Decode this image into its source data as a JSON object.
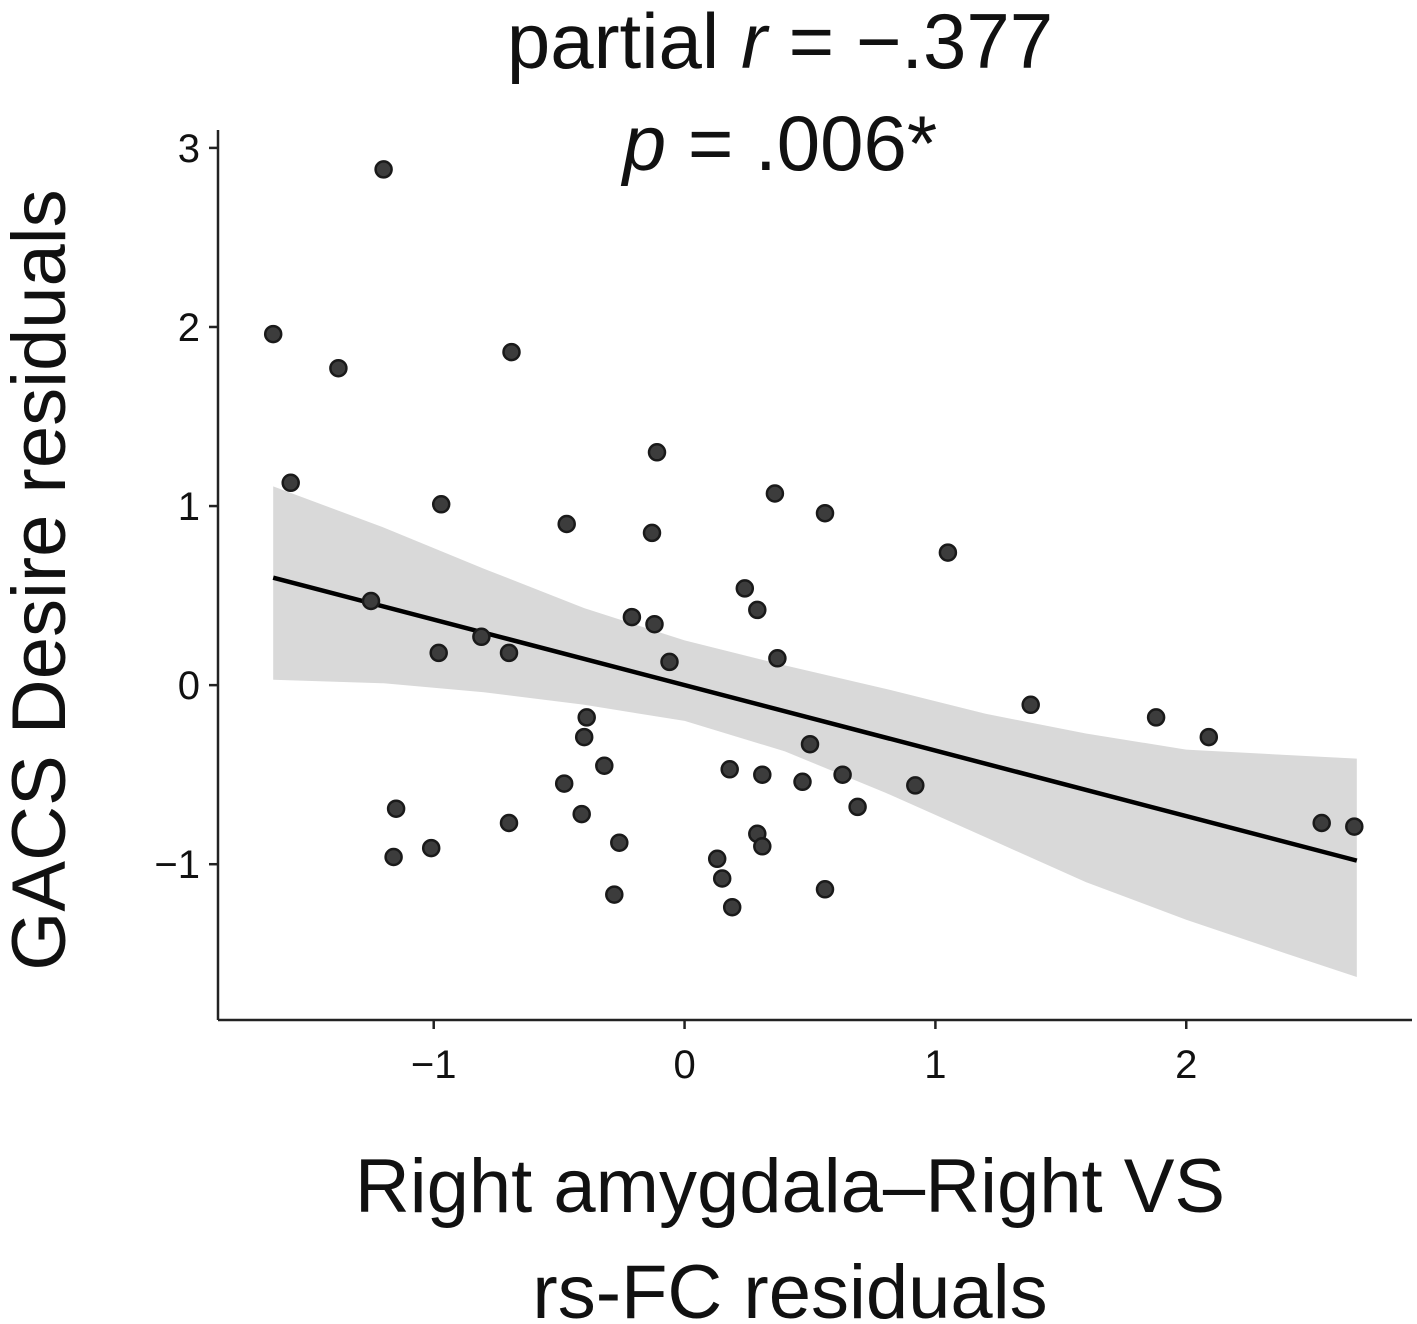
{
  "chart_data": {
    "type": "scatter",
    "title_lines": [
      [
        {
          "text": "partial ",
          "italic": false
        },
        {
          "text": "r",
          "italic": true
        },
        {
          "text": " = −.377",
          "italic": false
        }
      ],
      [
        {
          "text": "p",
          "italic": true
        },
        {
          "text": " = .006*",
          "italic": false
        }
      ]
    ],
    "xlabel_lines": [
      "Right amygdala–Right VS",
      "rs-FC residuals"
    ],
    "ylabel": "GACS Desire residuals",
    "xlim": [
      -1.86,
      2.9
    ],
    "ylim": [
      -1.87,
      3.1
    ],
    "xticks": [
      -1,
      0,
      1,
      2
    ],
    "xtick_labels": [
      "−1",
      "0",
      "1",
      "2"
    ],
    "yticks": [
      -1,
      0,
      1,
      2,
      3
    ],
    "ytick_labels": [
      "−1",
      "0",
      "1",
      "2",
      "3"
    ],
    "grid": false,
    "legend": "none",
    "colors": {
      "points": "#3c3c3c",
      "line": "#000000",
      "band": "#d9d9d9"
    },
    "points": [
      {
        "x": -1.2,
        "y": 2.88
      },
      {
        "x": -1.64,
        "y": 1.96
      },
      {
        "x": -1.38,
        "y": 1.77
      },
      {
        "x": -0.69,
        "y": 1.86
      },
      {
        "x": -1.57,
        "y": 1.13
      },
      {
        "x": -0.11,
        "y": 1.3
      },
      {
        "x": -0.97,
        "y": 1.01
      },
      {
        "x": -0.47,
        "y": 0.9
      },
      {
        "x": -0.13,
        "y": 0.85
      },
      {
        "x": 0.36,
        "y": 1.07
      },
      {
        "x": 0.56,
        "y": 0.96
      },
      {
        "x": 1.05,
        "y": 0.74
      },
      {
        "x": 0.24,
        "y": 0.54
      },
      {
        "x": 0.29,
        "y": 0.42
      },
      {
        "x": -1.25,
        "y": 0.47
      },
      {
        "x": -0.81,
        "y": 0.27
      },
      {
        "x": -0.98,
        "y": 0.18
      },
      {
        "x": -0.7,
        "y": 0.18
      },
      {
        "x": -0.21,
        "y": 0.38
      },
      {
        "x": -0.12,
        "y": 0.34
      },
      {
        "x": -0.06,
        "y": 0.13
      },
      {
        "x": 0.37,
        "y": 0.15
      },
      {
        "x": 1.38,
        "y": -0.11
      },
      {
        "x": 1.88,
        "y": -0.18
      },
      {
        "x": 2.09,
        "y": -0.29
      },
      {
        "x": -0.39,
        "y": -0.18
      },
      {
        "x": -0.4,
        "y": -0.29
      },
      {
        "x": 0.5,
        "y": -0.33
      },
      {
        "x": -0.32,
        "y": -0.45
      },
      {
        "x": 0.18,
        "y": -0.47
      },
      {
        "x": 0.31,
        "y": -0.5
      },
      {
        "x": 0.63,
        "y": -0.5
      },
      {
        "x": -0.48,
        "y": -0.55
      },
      {
        "x": 0.47,
        "y": -0.54
      },
      {
        "x": 0.92,
        "y": -0.56
      },
      {
        "x": -1.15,
        "y": -0.69
      },
      {
        "x": 0.69,
        "y": -0.68
      },
      {
        "x": -0.41,
        "y": -0.72
      },
      {
        "x": -0.7,
        "y": -0.77
      },
      {
        "x": 2.54,
        "y": -0.77
      },
      {
        "x": 2.67,
        "y": -0.79
      },
      {
        "x": -1.01,
        "y": -0.91
      },
      {
        "x": -0.26,
        "y": -0.88
      },
      {
        "x": 0.29,
        "y": -0.83
      },
      {
        "x": 0.31,
        "y": -0.9
      },
      {
        "x": -1.16,
        "y": -0.96
      },
      {
        "x": 0.13,
        "y": -0.97
      },
      {
        "x": 0.15,
        "y": -1.08
      },
      {
        "x": -0.28,
        "y": -1.17
      },
      {
        "x": 0.56,
        "y": -1.14
      },
      {
        "x": 0.19,
        "y": -1.24
      }
    ],
    "regression": {
      "x_start": -1.64,
      "y_start": 0.6,
      "x_end": 2.68,
      "y_end": -0.98
    },
    "confidence_band": {
      "x": [
        -1.64,
        -1.2,
        -0.8,
        -0.4,
        0.0,
        0.4,
        0.8,
        1.2,
        1.6,
        2.0,
        2.4,
        2.68
      ],
      "upper": [
        1.11,
        0.88,
        0.65,
        0.43,
        0.25,
        0.11,
        -0.02,
        -0.16,
        -0.27,
        -0.36,
        -0.39,
        -0.41
      ],
      "lower": [
        0.03,
        0.01,
        -0.04,
        -0.11,
        -0.2,
        -0.37,
        -0.6,
        -0.85,
        -1.1,
        -1.31,
        -1.5,
        -1.63
      ]
    }
  }
}
